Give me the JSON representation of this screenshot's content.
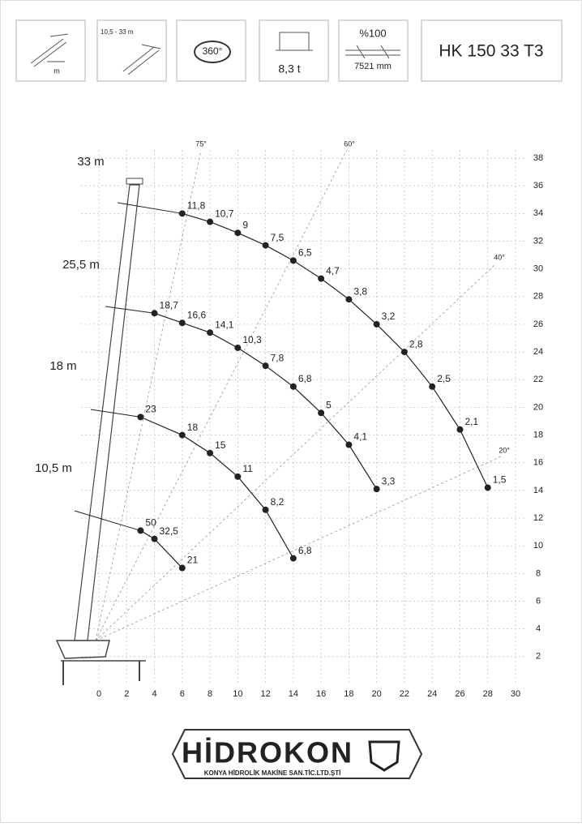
{
  "header": {
    "extension_unit": "m",
    "boom_range": "10,5 - 33 m",
    "rotation": "360°",
    "capacity": "8,3 t",
    "outrigger_percent": "%100",
    "outrigger_width": "7521 mm",
    "model": "HK 150 33 T3"
  },
  "chart_data": {
    "type": "scatter",
    "xlim": [
      0,
      30
    ],
    "ylim": [
      0,
      38
    ],
    "xticks": [
      0,
      2,
      4,
      6,
      8,
      10,
      12,
      14,
      16,
      18,
      20,
      22,
      24,
      26,
      28,
      30
    ],
    "yticks": [
      2,
      4,
      6,
      8,
      10,
      12,
      14,
      16,
      18,
      20,
      22,
      24,
      26,
      28,
      30,
      32,
      34,
      36,
      38
    ],
    "grid": true,
    "angle_labels": [
      "75°",
      "60°",
      "40°",
      "20°"
    ],
    "series": [
      {
        "name": "33 m",
        "color": "#222",
        "x": [
          6,
          8,
          10,
          12,
          14,
          16,
          18,
          20,
          22,
          24,
          26,
          28
        ],
        "values": [
          34,
          33.4,
          32.6,
          31.7,
          30.6,
          29.3,
          27.8,
          26,
          24,
          21.5,
          18.4,
          14.2
        ],
        "loads": [
          11.8,
          10.7,
          9,
          7.5,
          6.5,
          4.7,
          3.8,
          3.2,
          2.8,
          2.5,
          2.1,
          1.5
        ],
        "load_labels": [
          "11,8",
          "10,7",
          "9",
          "7,5",
          "6,5",
          "4,7",
          "3,8",
          "3,2",
          "2,8",
          "2,5",
          "2,1",
          "1,5"
        ]
      },
      {
        "name": "25,5 m",
        "color": "#222",
        "x": [
          4,
          6,
          8,
          10,
          12,
          14,
          16,
          18,
          20
        ],
        "values": [
          26.8,
          26.1,
          25.4,
          24.3,
          23,
          21.5,
          19.6,
          17.3,
          14.1
        ],
        "loads": [
          18.7,
          16.6,
          14.1,
          10.3,
          7.8,
          6.8,
          5,
          4.1,
          3.3
        ],
        "load_labels": [
          "18,7",
          "16,6",
          "14,1",
          "10,3",
          "7,8",
          "6,8",
          "5",
          "4,1",
          "3,3"
        ]
      },
      {
        "name": "18 m",
        "color": "#222",
        "x": [
          3,
          6,
          8,
          10,
          12,
          14
        ],
        "values": [
          19.3,
          18,
          16.7,
          15,
          12.6,
          9.1
        ],
        "loads": [
          23,
          18,
          15,
          11,
          8.2,
          6.8
        ],
        "load_labels": [
          "23",
          "18",
          "15",
          "11",
          "8,2",
          "6,8"
        ]
      },
      {
        "name": "10,5 m",
        "color": "#222",
        "x": [
          3,
          4,
          6
        ],
        "values": [
          11.1,
          10.5,
          8.4
        ],
        "loads": [
          50,
          32.5,
          21
        ],
        "load_labels": [
          "50",
          "32,5",
          "21"
        ]
      }
    ]
  },
  "footer": {
    "brand": "HİDROKON",
    "company": "KONYA HİDROLİK MAKİNE SAN.TİC.LTD.ŞTİ"
  }
}
